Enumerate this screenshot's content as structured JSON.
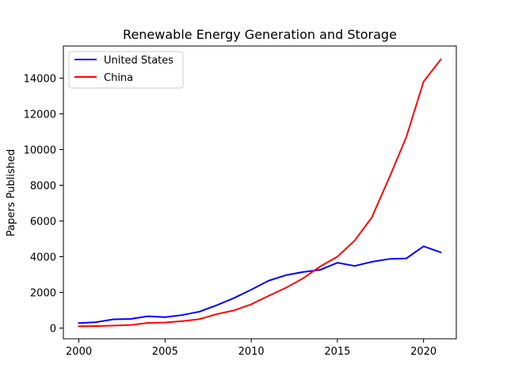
{
  "chart_data": {
    "type": "line",
    "title": "Renewable Energy Generation and Storage",
    "xlabel": "",
    "ylabel": "Papers Published",
    "x": [
      2000,
      2001,
      2002,
      2003,
      2004,
      2005,
      2006,
      2007,
      2008,
      2009,
      2010,
      2011,
      2012,
      2013,
      2014,
      2015,
      2016,
      2017,
      2018,
      2019,
      2020,
      2021
    ],
    "series": [
      {
        "name": "United States",
        "color": "#0000ff",
        "values": [
          280,
          330,
          490,
          510,
          660,
          610,
          730,
          920,
          1280,
          1680,
          2150,
          2650,
          2960,
          3140,
          3260,
          3660,
          3480,
          3710,
          3870,
          3900,
          4580,
          4240
        ]
      },
      {
        "name": "China",
        "color": "#ff0000",
        "values": [
          100,
          110,
          140,
          170,
          290,
          310,
          390,
          500,
          780,
          990,
          1330,
          1800,
          2250,
          2780,
          3450,
          4000,
          4900,
          6200,
          8400,
          10700,
          13800,
          15050
        ]
      }
    ],
    "xlim": [
      1999.1,
      2021.9
    ],
    "ylim": [
      -600,
      15800
    ],
    "xticks": [
      2000,
      2005,
      2010,
      2015,
      2020
    ],
    "yticks": [
      0,
      2000,
      4000,
      6000,
      8000,
      10000,
      12000,
      14000
    ],
    "grid": false,
    "legend_position": "upper-left"
  }
}
